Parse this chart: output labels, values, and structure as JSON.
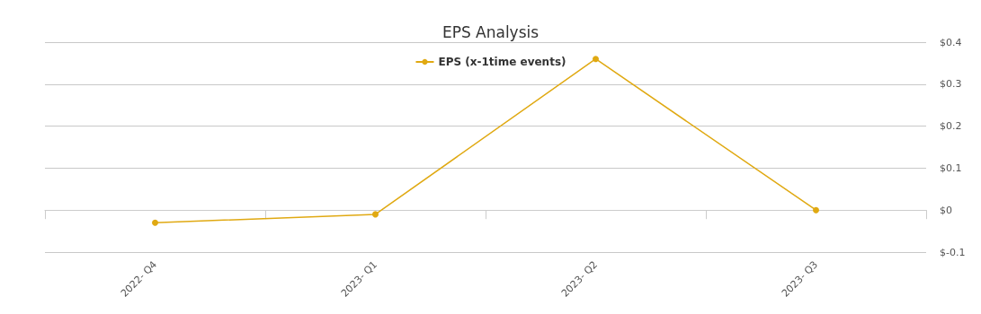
{
  "chart_data": {
    "type": "line",
    "title": "EPS Analysis",
    "categories": [
      "2022- Q4",
      "2023- Q1",
      "2023- Q2",
      "2023- Q3"
    ],
    "series": [
      {
        "name": "EPS (x-1time events)",
        "color": "#e0a912",
        "values": [
          -0.03,
          -0.01,
          0.36,
          0
        ]
      }
    ],
    "ylim": [
      -0.1,
      0.4
    ],
    "yticks": [
      {
        "value": -0.1,
        "label": "$-0.1"
      },
      {
        "value": 0,
        "label": "$0"
      },
      {
        "value": 0.1,
        "label": "$0.1"
      },
      {
        "value": 0.2,
        "label": "$0.2"
      },
      {
        "value": 0.3,
        "label": "$0.3"
      },
      {
        "value": 0.4,
        "label": "$0.4"
      }
    ],
    "grid": "y",
    "legend": "top",
    "marker": "circle",
    "line_style": "solid"
  }
}
